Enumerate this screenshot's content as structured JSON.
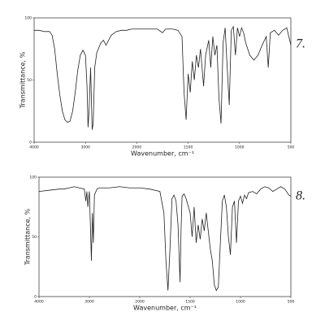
{
  "chart_data": [
    {
      "type": "line",
      "label": "7.",
      "xlabel": "Wavenumber, cm⁻¹",
      "ylabel": "Transmittance, %",
      "xlim": [
        4000,
        500
      ],
      "xticks": [
        4000,
        3000,
        2000,
        1500,
        1000,
        500
      ],
      "xbreak": 2000,
      "ylim": [
        0,
        100
      ],
      "yticks": [
        0,
        50,
        100
      ],
      "color": "#222222",
      "x": [
        4000,
        3900,
        3800,
        3700,
        3650,
        3600,
        3550,
        3500,
        3450,
        3400,
        3350,
        3300,
        3250,
        3200,
        3150,
        3100,
        3050,
        3000,
        2970,
        2950,
        2930,
        2900,
        2870,
        2850,
        2820,
        2780,
        2700,
        2650,
        2600,
        2550,
        2500,
        2400,
        2300,
        2200,
        2100,
        2000,
        1900,
        1800,
        1750,
        1720,
        1650,
        1600,
        1560,
        1540,
        1520,
        1500,
        1480,
        1460,
        1440,
        1420,
        1400,
        1380,
        1350,
        1330,
        1300,
        1280,
        1260,
        1240,
        1220,
        1200,
        1180,
        1160,
        1140,
        1120,
        1100,
        1080,
        1060,
        1040,
        1020,
        1000,
        980,
        960,
        940,
        900,
        860,
        820,
        780,
        740,
        720,
        700,
        660,
        620,
        580,
        540,
        500
      ],
      "values": [
        90,
        90,
        89,
        89,
        86,
        75,
        55,
        38,
        25,
        18,
        16,
        17,
        25,
        40,
        58,
        70,
        74,
        70,
        45,
        12,
        25,
        60,
        10,
        15,
        60,
        72,
        80,
        82,
        78,
        82,
        86,
        89,
        90,
        90,
        91,
        91,
        91,
        91,
        88,
        91,
        91,
        90,
        85,
        40,
        18,
        55,
        40,
        65,
        50,
        70,
        60,
        75,
        45,
        70,
        82,
        60,
        85,
        70,
        78,
        35,
        15,
        80,
        92,
        60,
        30,
        90,
        93,
        70,
        92,
        85,
        92,
        88,
        80,
        70,
        66,
        70,
        78,
        85,
        60,
        88,
        90,
        86,
        90,
        92,
        78
      ]
    },
    {
      "type": "line",
      "label": "8.",
      "xlabel": "Wavenumber, cm⁻¹",
      "ylabel": "Transmittance, %",
      "xlim": [
        4000,
        500
      ],
      "xticks": [
        4000,
        3000,
        2000,
        1500,
        1000,
        500
      ],
      "xbreak": 2000,
      "ylim": [
        0,
        100
      ],
      "yticks": [
        0,
        50,
        100
      ],
      "color": "#222222",
      "x": [
        4000,
        3800,
        3600,
        3500,
        3400,
        3300,
        3200,
        3100,
        3070,
        3050,
        3030,
        3000,
        2980,
        2960,
        2940,
        2920,
        2900,
        2850,
        2800,
        2600,
        2400,
        2200,
        2000,
        1900,
        1800,
        1760,
        1740,
        1720,
        1700,
        1680,
        1660,
        1640,
        1620,
        1600,
        1590,
        1580,
        1560,
        1540,
        1500,
        1480,
        1460,
        1440,
        1420,
        1400,
        1380,
        1360,
        1340,
        1320,
        1300,
        1280,
        1260,
        1240,
        1220,
        1200,
        1180,
        1160,
        1140,
        1120,
        1100,
        1080,
        1060,
        1040,
        1020,
        1000,
        980,
        960,
        940,
        920,
        880,
        840,
        800,
        760,
        720,
        680,
        640,
        600,
        560,
        520,
        500
      ],
      "values": [
        88,
        89,
        90,
        90,
        91,
        92,
        91,
        90,
        80,
        88,
        75,
        88,
        60,
        30,
        70,
        45,
        85,
        90,
        91,
        91,
        92,
        91,
        91,
        90,
        88,
        70,
        30,
        5,
        40,
        82,
        85,
        80,
        60,
        12,
        55,
        84,
        86,
        82,
        70,
        50,
        75,
        45,
        60,
        48,
        65,
        55,
        70,
        55,
        40,
        30,
        10,
        5,
        8,
        45,
        80,
        85,
        75,
        50,
        35,
        75,
        80,
        45,
        80,
        84,
        78,
        85,
        82,
        87,
        88,
        86,
        90,
        92,
        91,
        88,
        90,
        92,
        90,
        85,
        84
      ]
    }
  ]
}
